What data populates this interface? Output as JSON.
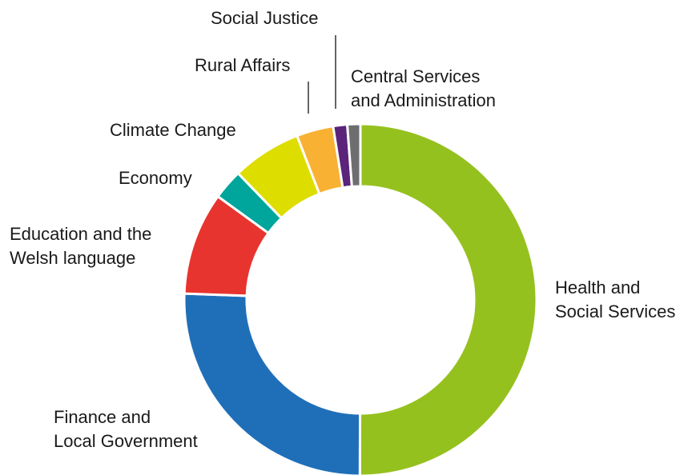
{
  "chart_data": {
    "type": "pie",
    "title": "",
    "categories": [
      "Health and Social Services",
      "Finance and Local Government",
      "Education and the Welsh language",
      "Economy",
      "Climate Change",
      "Rural Affairs",
      "Social Justice",
      "Central Services and Administration"
    ],
    "label_lines": [
      [
        "Health and",
        "Social Services"
      ],
      [
        "Finance and",
        "Local Government"
      ],
      [
        "Education and the",
        "Welsh language"
      ],
      [
        "Economy"
      ],
      [
        "Climate Change"
      ],
      [
        "Rural Affairs"
      ],
      [
        "Social Justice"
      ],
      [
        "Central Services",
        "and Administration"
      ]
    ],
    "values": [
      50.4,
      25.7,
      9.5,
      2.8,
      6.4,
      3.4,
      1.3,
      1.2
    ],
    "colors": [
      "#95c11f",
      "#1f6fb8",
      "#e8342e",
      "#00a59b",
      "#dddd00",
      "#f8b133",
      "#5b237a",
      "#6d6e70"
    ],
    "donut": true,
    "legend": "none"
  }
}
